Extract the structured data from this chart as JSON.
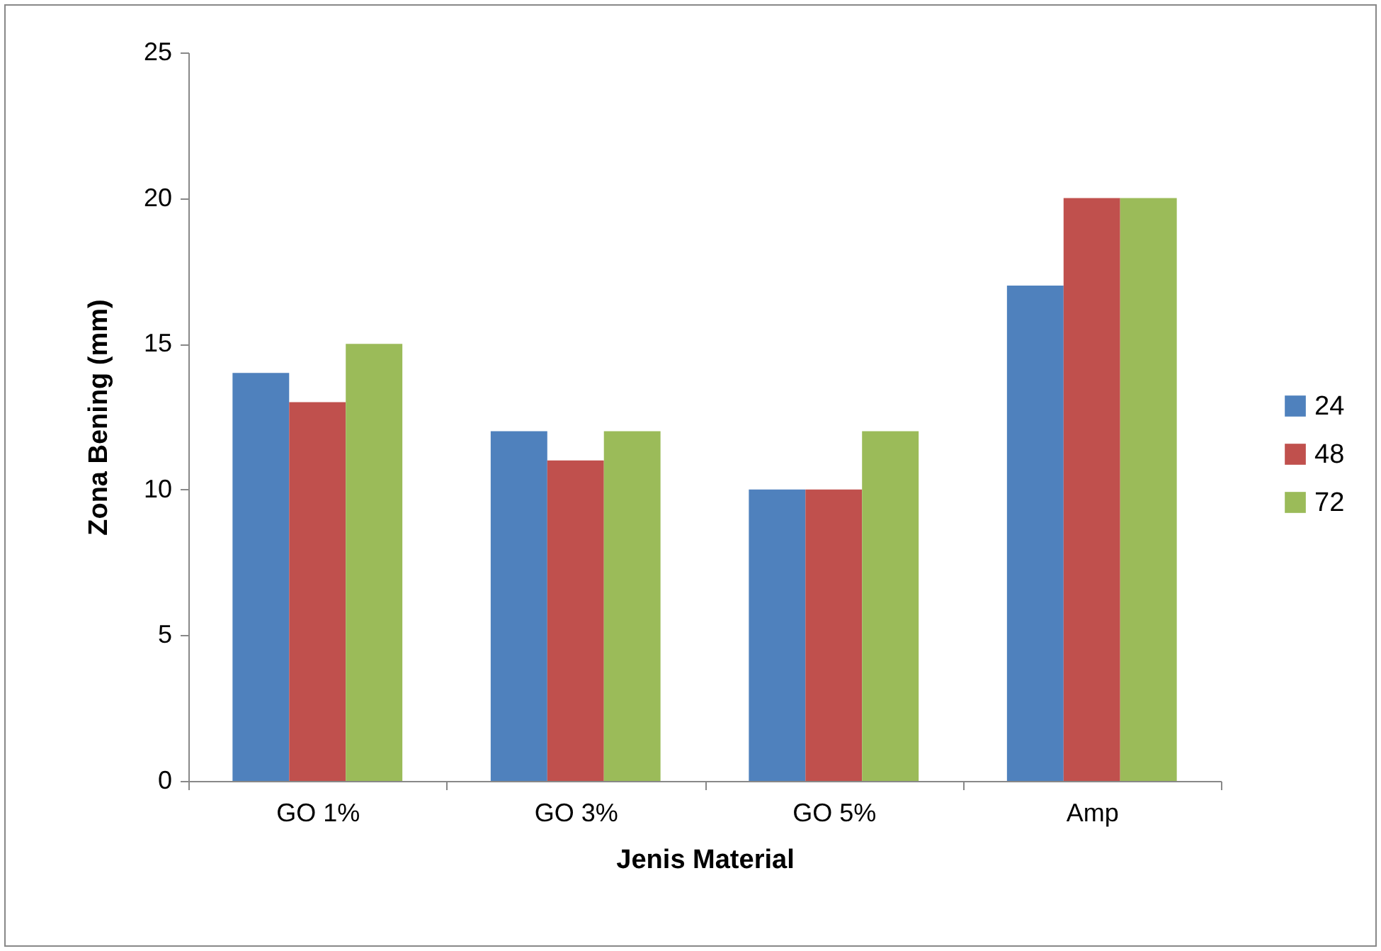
{
  "chart_data": {
    "type": "bar",
    "xlabel": "Jenis Material",
    "ylabel": "Zona Bening (mm)",
    "categories": [
      "GO 1%",
      "GO 3%",
      "GO 5%",
      "Amp"
    ],
    "series": [
      {
        "name": "24",
        "color": "#4f81bd",
        "values": [
          14,
          12,
          10,
          17
        ]
      },
      {
        "name": "48",
        "color": "#c0504d",
        "values": [
          13,
          11,
          10,
          20
        ]
      },
      {
        "name": "72",
        "color": "#9bbb59",
        "values": [
          15,
          12,
          12,
          20
        ]
      }
    ],
    "ylim": [
      0,
      25
    ],
    "yticks": [
      0,
      5,
      10,
      15,
      20,
      25
    ],
    "grid": false,
    "legend": "right"
  }
}
